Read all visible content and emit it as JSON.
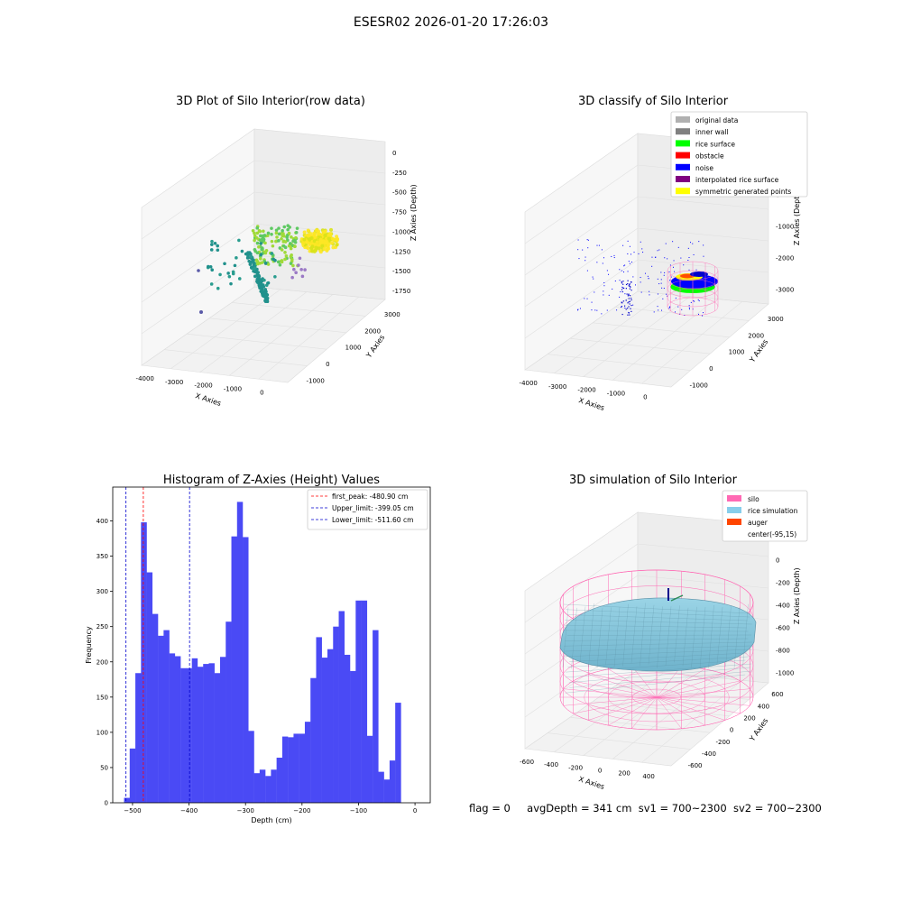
{
  "figure": {
    "title": "ESESR02 2026-01-20 17:26:03",
    "footer": {
      "flag": "flag = 0",
      "avg_depth": "avgDepth = 341 cm",
      "sv1": "sv1 = 700~2300",
      "sv2": "sv2 = 700~2300"
    }
  },
  "chart_data": [
    {
      "type": "scatter",
      "panel": "top-left",
      "title": "3D Plot of Silo Interior(row data)",
      "xlabel": "X Axies",
      "ylabel": "Y Axies",
      "zlabel": "Z Axies (Depth)",
      "x_ticks": [
        "-4000",
        "-3000",
        "-2000",
        "-1000",
        "0"
      ],
      "y_ticks": [
        "-1000",
        "0",
        "1000",
        "2000",
        "3000"
      ],
      "z_ticks": [
        "0",
        "-250",
        "-500",
        "-750",
        "-1000",
        "-1250",
        "-1500",
        "-1750"
      ],
      "colormap": [
        "#440154",
        "#21918c",
        "#5ec962",
        "#fde725"
      ]
    },
    {
      "type": "scatter",
      "panel": "top-right",
      "title": "3D classify of Silo Interior",
      "xlabel": "X Axies",
      "ylabel": "Y Axies",
      "zlabel": "Z Axies (Depth)",
      "x_ticks": [
        "-4000",
        "-3000",
        "-2000",
        "-1000",
        "0"
      ],
      "y_ticks": [
        "-1000",
        "0",
        "1000",
        "2000",
        "3000"
      ],
      "z_ticks": [
        "1000",
        "0",
        "-1000",
        "-2000",
        "-3000"
      ],
      "legend_position": "top-right",
      "legend": [
        {
          "label": "original data",
          "color": "#b0b0b0"
        },
        {
          "label": "inner wall",
          "color": "#808080"
        },
        {
          "label": "rice surface",
          "color": "#00ff00"
        },
        {
          "label": "obstacle",
          "color": "#ff0000"
        },
        {
          "label": "noise",
          "color": "#0000ff"
        },
        {
          "label": "interpolated rice surface",
          "color": "#800080"
        },
        {
          "label": "symmetric generated points",
          "color": "#ffff00"
        }
      ]
    },
    {
      "type": "bar",
      "panel": "bottom-left",
      "title": "Histogram of Z-Axies (Height) Values",
      "xlabel": "Depth (cm)",
      "ylabel": "Frequency",
      "xlim": [
        -535,
        27
      ],
      "ylim": [
        0,
        448
      ],
      "x_ticks": [
        -500,
        -400,
        -300,
        -200,
        -100,
        0
      ],
      "y_ticks": [
        0,
        50,
        100,
        150,
        200,
        250,
        300,
        350,
        400
      ],
      "bin_start": -515,
      "bin_width": 10.0,
      "bin_color": "#4a4af5",
      "values": [
        7,
        77,
        184,
        398,
        327,
        268,
        237,
        245,
        212,
        208,
        191,
        191,
        205,
        193,
        197,
        198,
        184,
        207,
        257,
        378,
        427,
        377,
        102,
        42,
        47,
        38,
        47,
        64,
        94,
        93,
        98,
        98,
        115,
        177,
        235,
        206,
        218,
        250,
        272,
        210,
        187,
        287,
        287,
        95,
        245,
        44,
        33,
        60,
        142
      ],
      "lines": [
        {
          "label": "first_peak: -480.90 cm",
          "value": -480.9,
          "color": "#ff0000"
        },
        {
          "label": "Upper_limit: -399.05 cm",
          "value": -399.05,
          "color": "#0000cd"
        },
        {
          "label": "Lower_limit: -511.60 cm",
          "value": -511.6,
          "color": "#0000cd"
        }
      ],
      "legend_position": "top-right"
    },
    {
      "type": "scatter",
      "panel": "bottom-right",
      "title": "3D simulation of Silo Interior",
      "xlabel": "X Axies",
      "ylabel": "Y Axies",
      "zlabel": "Z Axies (Depth)",
      "x_ticks": [
        "-600",
        "-400",
        "-200",
        "0",
        "200",
        "400"
      ],
      "y_ticks": [
        "-600",
        "-400",
        "-200",
        "0",
        "200",
        "400",
        "600"
      ],
      "z_ticks": [
        "200",
        "0",
        "-200",
        "-400",
        "-600",
        "-800",
        "-1000"
      ],
      "legend_position": "top-right",
      "legend": [
        {
          "label": "silo",
          "color": "#ff69b4"
        },
        {
          "label": "rice simulation",
          "color": "#87ceeb"
        },
        {
          "label": "auger",
          "color": "#ff4500"
        },
        {
          "label": "center(-95,15)",
          "color": ""
        }
      ]
    }
  ]
}
